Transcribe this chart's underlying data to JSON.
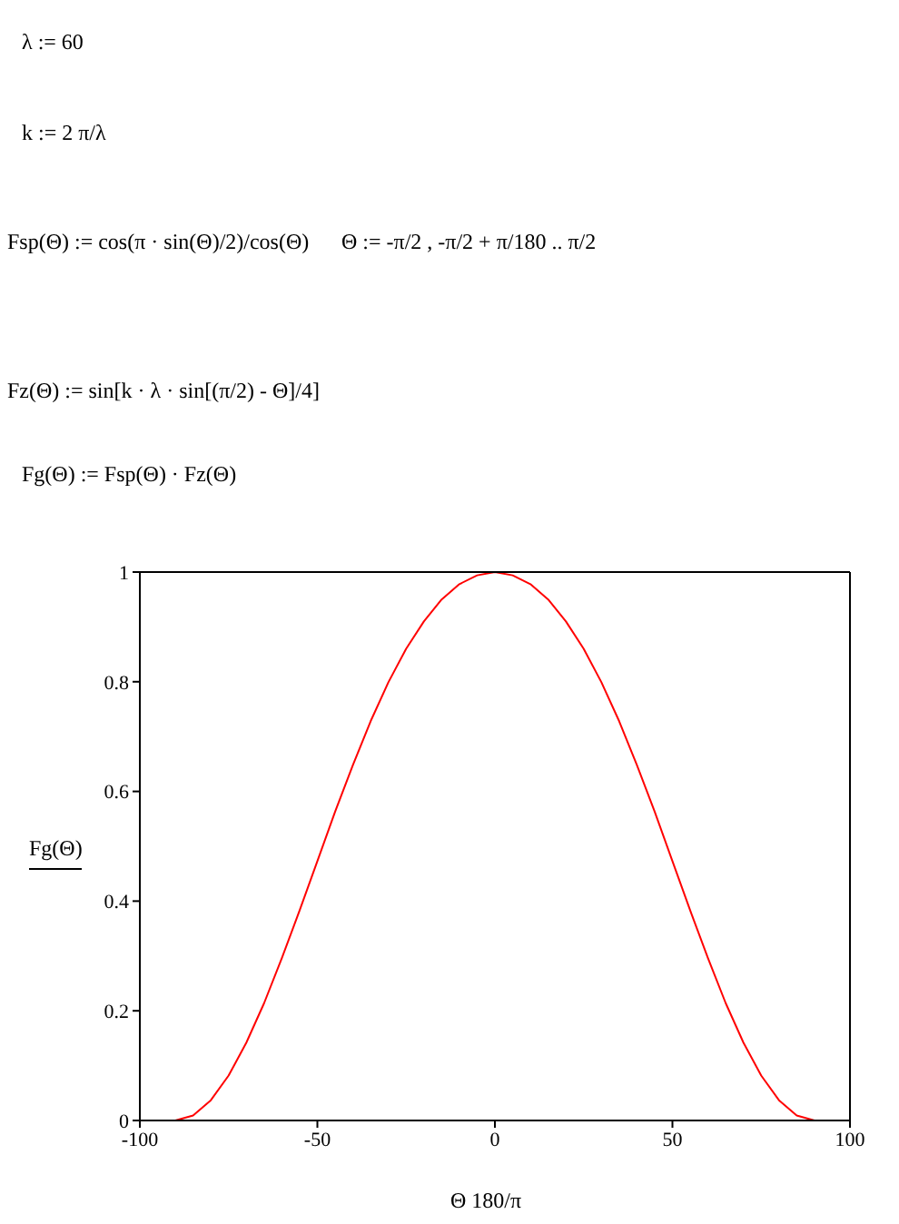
{
  "chart_data": {
    "type": "line",
    "xlabel": "Θ 180/π",
    "ylabel": "Fg(Θ)",
    "annotations": [
      "λ := 60",
      "k := 2 π/λ",
      "Fsp(Θ) := cos(π · sin(Θ)/2)/cos(Θ)",
      "Θ := -π/2 , -π/2 + π/180 .. π/2",
      "Fz(Θ) := sin[k · λ · sin[(π/2) - Θ]/4]",
      "Fg(Θ) := Fsp(Θ) · Fz(Θ)"
    ],
    "x": [
      -90,
      -85,
      -80,
      -75,
      -70,
      -65,
      -60,
      -55,
      -50,
      -45,
      -40,
      -35,
      -30,
      -25,
      -20,
      -15,
      -10,
      -5,
      0,
      5,
      10,
      15,
      20,
      25,
      30,
      35,
      40,
      45,
      50,
      55,
      60,
      65,
      70,
      75,
      80,
      85,
      90
    ],
    "series": [
      {
        "color": "#ff0000",
        "values": [
          0,
          0.009,
          0.037,
          0.082,
          0.142,
          0.214,
          0.296,
          0.383,
          0.473,
          0.563,
          0.648,
          0.728,
          0.799,
          0.86,
          0.91,
          0.95,
          0.978,
          0.994,
          1,
          0.994,
          0.978,
          0.95,
          0.91,
          0.86,
          0.799,
          0.728,
          0.648,
          0.563,
          0.473,
          0.383,
          0.296,
          0.214,
          0.142,
          0.082,
          0.037,
          0.009,
          0
        ]
      }
    ],
    "xlim": [
      -100,
      100
    ],
    "xticks": [
      -100,
      -50,
      0,
      50,
      100
    ],
    "ylim": [
      0,
      1
    ],
    "yticks": [
      0,
      0.2,
      0.4,
      0.6,
      0.8,
      1
    ]
  }
}
